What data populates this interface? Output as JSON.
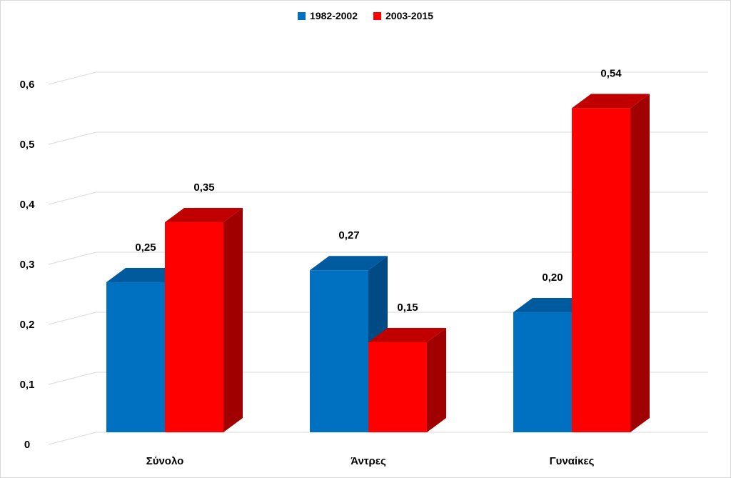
{
  "chart_data": {
    "type": "bar",
    "categories": [
      "Σύνολο",
      "Άντρες",
      "Γυναίκες"
    ],
    "series": [
      {
        "name": "1982-2002",
        "values": [
          0.25,
          0.27,
          0.2
        ],
        "labels": [
          "0,25",
          "0,27",
          "0,20"
        ],
        "color": "#0070c0",
        "side_color": "#004a85",
        "top_color": "#005a9e"
      },
      {
        "name": "2003-2015",
        "values": [
          0.35,
          0.15,
          0.54
        ],
        "labels": [
          "0,35",
          "0,15",
          "0,54"
        ],
        "color": "#ff0000",
        "side_color": "#a00000",
        "top_color": "#c00000"
      }
    ],
    "yticks": [
      "0",
      "0,1",
      "0,2",
      "0,3",
      "0,4",
      "0,5",
      "0,6"
    ],
    "ylim": [
      0,
      0.6
    ],
    "grid": true,
    "legend_position": "top-center",
    "title": "",
    "xlabel": "",
    "ylabel": ""
  }
}
